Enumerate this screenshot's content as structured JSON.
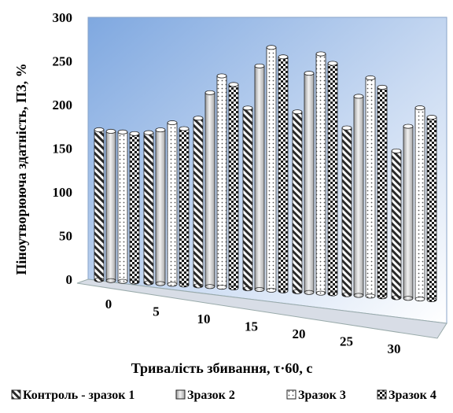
{
  "chart_data": {
    "type": "bar",
    "title": "",
    "xlabel": "Тривалість збивання, τ·60, с",
    "ylabel": "Піноутворююча  здатність,  ПЗ, %",
    "categories": [
      "0",
      "5",
      "10",
      "15",
      "20",
      "25",
      "30"
    ],
    "y_ticks": [
      "0",
      "50",
      "100",
      "150",
      "200",
      "250",
      "300"
    ],
    "ylim": [
      0,
      300
    ],
    "grid": false,
    "legend_position": "bottom",
    "series": [
      {
        "name": "Контроль - зразок 1",
        "pattern": "diagonal",
        "values": [
          172,
          172,
          192,
          207,
          206,
          191,
          168
        ]
      },
      {
        "name": "Зразок 2",
        "pattern": "light-gray",
        "values": [
          171,
          176,
          222,
          256,
          251,
          228,
          197
        ]
      },
      {
        "name": "Зразок 3",
        "pattern": "dotted",
        "values": [
          171,
          185,
          242,
          278,
          274,
          250,
          219
        ]
      },
      {
        "name": "Зразок 4",
        "pattern": "checker",
        "values": [
          170,
          179,
          233,
          268,
          264,
          240,
          209
        ]
      }
    ]
  }
}
